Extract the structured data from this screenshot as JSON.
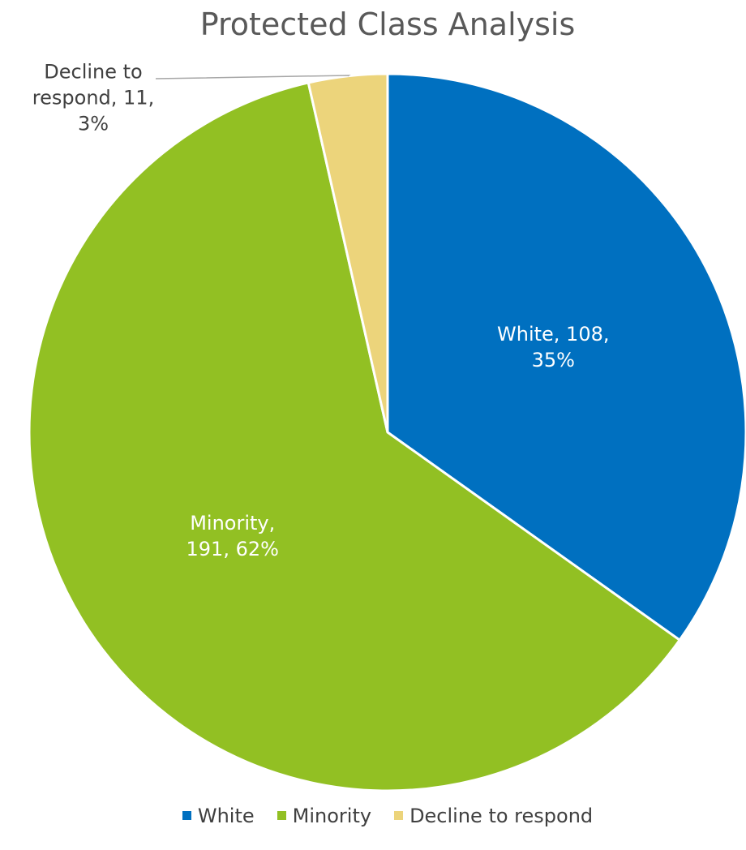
{
  "chart_data": {
    "type": "pie",
    "title": "Protected Class Analysis",
    "categories": [
      "White",
      "Minority",
      "Decline to respond"
    ],
    "values": [
      108,
      191,
      11
    ],
    "percents": [
      "35%",
      "62%",
      "3%"
    ],
    "colors": [
      "#0070C0",
      "#92C023",
      "#ECD47B"
    ],
    "label_colors": [
      "#ffffff",
      "#ffffff",
      "#404040"
    ],
    "data_labels": [
      [
        "White, 108,",
        "35%"
      ],
      [
        "Minority,",
        "191, 62%"
      ],
      [
        "Decline to",
        "respond, 11,",
        "3%"
      ]
    ],
    "legend_position": "bottom"
  }
}
